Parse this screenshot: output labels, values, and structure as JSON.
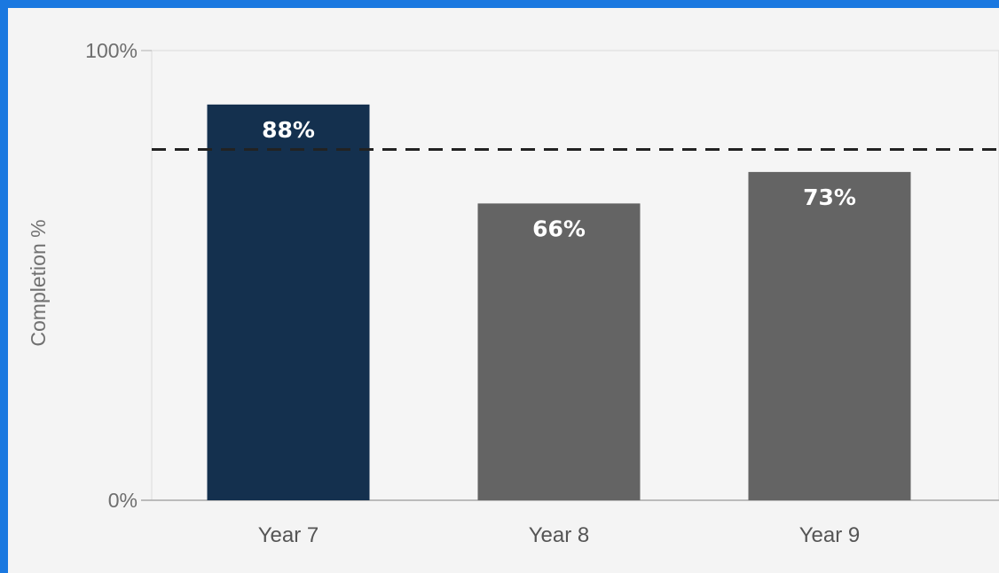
{
  "chart_data": {
    "type": "bar",
    "categories": [
      "Year 7",
      "Year 8",
      "Year 9"
    ],
    "values": [
      88,
      66,
      73
    ],
    "data_labels": [
      "88%",
      "66%",
      "73%"
    ],
    "ylabel": "Completion %",
    "ylim": [
      0,
      100
    ],
    "y_ticks": [
      {
        "value": 0,
        "label": "0%"
      },
      {
        "value": 100,
        "label": "100%"
      }
    ],
    "reference_line": {
      "value": 78,
      "style": "dashed"
    },
    "grid": false,
    "legend": "none",
    "colors": {
      "highlight": "#14304e",
      "default": "#646464",
      "reference_line": "#222222"
    }
  }
}
